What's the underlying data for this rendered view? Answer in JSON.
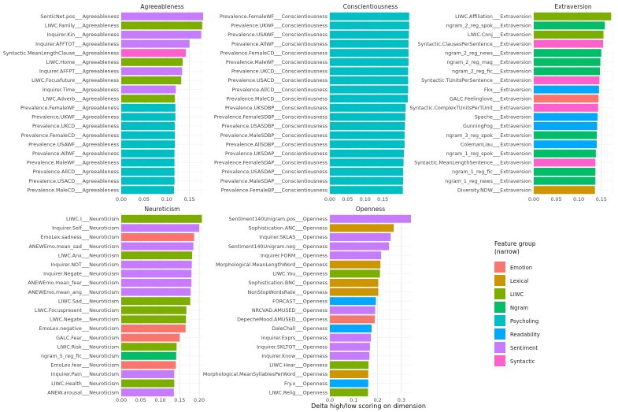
{
  "chart_data": {
    "type": "bar",
    "orientation": "horizontal",
    "xlabel": "Delta high/low scoring on dimension",
    "legend": {
      "title_line1": "Feature group",
      "title_line2": "(narrow)",
      "placement": "right",
      "items": [
        {
          "name": "Emotion",
          "color": "#F8766D"
        },
        {
          "name": "Lexical",
          "color": "#CD9600"
        },
        {
          "name": "LIWC",
          "color": "#7CAE00"
        },
        {
          "name": "Ngram",
          "color": "#00BE67"
        },
        {
          "name": "Psycholing",
          "color": "#00BFC4"
        },
        {
          "name": "Readability",
          "color": "#00A9FF"
        },
        {
          "name": "Sentiment",
          "color": "#C77CFF"
        },
        {
          "name": "Syntactic",
          "color": "#FF61CC"
        }
      ]
    },
    "panels": [
      {
        "title": "Agreeableness",
        "xticks": [
          0.0,
          0.05,
          0.1,
          0.15
        ],
        "xtick_labels": [
          "0.00",
          "0.05",
          "0.10",
          "0.15"
        ],
        "xlim": [
          0,
          0.18
        ],
        "bars": [
          {
            "label": "SenticNet.pos___Agreeableness",
            "value": 0.18,
            "group": "Sentiment"
          },
          {
            "label": "LIWC.Family___Agreeableness",
            "value": 0.178,
            "group": "LIWC"
          },
          {
            "label": "Inquirer.Kin___Agreeableness",
            "value": 0.176,
            "group": "Sentiment"
          },
          {
            "label": "Inquirer.AFFTOT___Agreeableness",
            "value": 0.15,
            "group": "Sentiment"
          },
          {
            "label": "Syntactic.MeanLengthClause___Agreeableness",
            "value": 0.142,
            "group": "Syntactic"
          },
          {
            "label": "LIWC.Home___Agreeableness",
            "value": 0.135,
            "group": "LIWC"
          },
          {
            "label": "Inquirer.AFFPT___Agreeableness",
            "value": 0.134,
            "group": "Sentiment"
          },
          {
            "label": "LIWC.Focusfuture___Agreeableness",
            "value": 0.132,
            "group": "LIWC"
          },
          {
            "label": "Inquirer.Time___Agreeableness",
            "value": 0.12,
            "group": "Sentiment"
          },
          {
            "label": "LIWC.Adverb___Agreeableness",
            "value": 0.118,
            "group": "LIWC"
          },
          {
            "label": "Prevalence.FemaleWF___Agreeableness",
            "value": 0.119,
            "group": "Psycholing"
          },
          {
            "label": "Prevalence.UKWF___Agreeableness",
            "value": 0.119,
            "group": "Psycholing"
          },
          {
            "label": "Prevalence.UKCD___Agreeableness",
            "value": 0.118,
            "group": "Psycholing"
          },
          {
            "label": "Prevalence.FemaleCD___Agreeableness",
            "value": 0.118,
            "group": "Psycholing"
          },
          {
            "label": "Prevalence.USAWF___Agreeableness",
            "value": 0.118,
            "group": "Psycholing"
          },
          {
            "label": "Prevalence.AllWF___Agreeableness",
            "value": 0.117,
            "group": "Psycholing"
          },
          {
            "label": "Prevalence.MaleWF___Agreeableness",
            "value": 0.117,
            "group": "Psycholing"
          },
          {
            "label": "Prevalence.AllCD___Agreeableness",
            "value": 0.117,
            "group": "Psycholing"
          },
          {
            "label": "Prevalence.USACD___Agreeableness",
            "value": 0.117,
            "group": "Psycholing"
          },
          {
            "label": "Prevalence.MaleCD___Agreeableness",
            "value": 0.116,
            "group": "Psycholing"
          }
        ]
      },
      {
        "title": "Conscientiousness",
        "xticks": [
          0.0,
          0.05,
          0.1,
          0.15
        ],
        "xtick_labels": [
          "0.00",
          "0.05",
          "0.10",
          "0.15"
        ],
        "xlim": [
          0,
          0.23
        ],
        "bars": [
          {
            "label": "Prevalence.FemaleWF___Conscientiousness",
            "value": 0.225,
            "group": "Psycholing"
          },
          {
            "label": "Prevalence.UKWF___Conscientiousness",
            "value": 0.225,
            "group": "Psycholing"
          },
          {
            "label": "Prevalence.USAWF___Conscientiousness",
            "value": 0.224,
            "group": "Psycholing"
          },
          {
            "label": "Prevalence.AllWF___Conscientiousness",
            "value": 0.223,
            "group": "Psycholing"
          },
          {
            "label": "Prevalence.FemaleCD___Conscientiousness",
            "value": 0.223,
            "group": "Psycholing"
          },
          {
            "label": "Prevalence.MaleWF___Conscientiousness",
            "value": 0.223,
            "group": "Psycholing"
          },
          {
            "label": "Prevalence.UKCD___Conscientiousness",
            "value": 0.222,
            "group": "Psycholing"
          },
          {
            "label": "Prevalence.USACD___Conscientiousness",
            "value": 0.222,
            "group": "Psycholing"
          },
          {
            "label": "Prevalence.AllCD___Conscientiousness",
            "value": 0.222,
            "group": "Psycholing"
          },
          {
            "label": "Prevalence.MaleCD___Conscientiousness",
            "value": 0.221,
            "group": "Psycholing"
          },
          {
            "label": "Prevalence.UKSDBP___Conscientiousness",
            "value": 0.215,
            "group": "Psycholing"
          },
          {
            "label": "Prevalence.FemaleSDBP___Conscientiousness",
            "value": 0.214,
            "group": "Psycholing"
          },
          {
            "label": "Prevalence.USASDBP___Conscientiousness",
            "value": 0.213,
            "group": "Psycholing"
          },
          {
            "label": "Prevalence.MaleSDBP___Conscientiousness",
            "value": 0.212,
            "group": "Psycholing"
          },
          {
            "label": "Prevalence.AllSDBP___Conscientiousness",
            "value": 0.212,
            "group": "Psycholing"
          },
          {
            "label": "Prevalence.UKSDAP___Conscientiousness",
            "value": 0.21,
            "group": "Psycholing"
          },
          {
            "label": "Prevalence.FemaleSDAP___Conscientiousness",
            "value": 0.209,
            "group": "Psycholing"
          },
          {
            "label": "Prevalence.USASDAP___Conscientiousness",
            "value": 0.208,
            "group": "Psycholing"
          },
          {
            "label": "Prevalence.MaleSDAP___Conscientiousness",
            "value": 0.208,
            "group": "Psycholing"
          },
          {
            "label": "Prevalence.FemaleBP___Conscientiousness",
            "value": 0.207,
            "group": "Psycholing"
          }
        ]
      },
      {
        "title": "Extraversion",
        "xticks": [
          0.0,
          0.05,
          0.1,
          0.15
        ],
        "xtick_labels": [
          "0.00",
          "0.05",
          "0.10",
          "0.15"
        ],
        "xlim": [
          0,
          0.175
        ],
        "bars": [
          {
            "label": "LIWC.Affiliation___Extraversion",
            "value": 0.172,
            "group": "LIWC"
          },
          {
            "label": "ngram_2_reg_spok___Extraversion",
            "value": 0.158,
            "group": "Ngram"
          },
          {
            "label": "LIWC.Conj___Extraversion",
            "value": 0.155,
            "group": "LIWC"
          },
          {
            "label": "Syntactic.ClausesPerSentence___Extraversion",
            "value": 0.154,
            "group": "Syntactic"
          },
          {
            "label": "ngram_2_reg_news___Extraversion",
            "value": 0.15,
            "group": "Ngram"
          },
          {
            "label": "ngram_2_reg_mag___Extraversion",
            "value": 0.148,
            "group": "Ngram"
          },
          {
            "label": "ngram_2_reg_fic___Extraversion",
            "value": 0.147,
            "group": "Ngram"
          },
          {
            "label": "Syntactic.TUnitsPerSentence___Extraversion",
            "value": 0.146,
            "group": "Syntactic"
          },
          {
            "label": "Fkx___Extraversion",
            "value": 0.145,
            "group": "Readability"
          },
          {
            "label": "GALC.Feelinglove___Extraversion",
            "value": 0.144,
            "group": "Emotion"
          },
          {
            "label": "Syntactic.ComplexTUnitsPerTUnit___Extraversion",
            "value": 0.143,
            "group": "Syntactic"
          },
          {
            "label": "Spache___Extraversion",
            "value": 0.142,
            "group": "Readability"
          },
          {
            "label": "GunningFog___Extraversion",
            "value": 0.141,
            "group": "Readability"
          },
          {
            "label": "ngram_3_reg_spok___Extraversion",
            "value": 0.14,
            "group": "Ngram"
          },
          {
            "label": "ColemanLiau___Extraversion",
            "value": 0.14,
            "group": "Readability"
          },
          {
            "label": "ngram_1_reg_spok___Extraversion",
            "value": 0.138,
            "group": "Ngram"
          },
          {
            "label": "Syntactic.MeanLengthSentence___Extraversion",
            "value": 0.137,
            "group": "Syntactic"
          },
          {
            "label": "ngram_1_reg_fic___Extraversion",
            "value": 0.137,
            "group": "Ngram"
          },
          {
            "label": "ngram_1_reg_news___Extraversion",
            "value": 0.137,
            "group": "Ngram"
          },
          {
            "label": "Diversity.NDW___Extraversion",
            "value": 0.136,
            "group": "Lexical"
          }
        ]
      },
      {
        "title": "Neuroticism",
        "xticks": [
          0.0,
          0.05,
          0.1,
          0.15,
          0.2
        ],
        "xtick_labels": [
          "0.00",
          "0.05",
          "0.10",
          "0.15",
          "0.20"
        ],
        "xlim": [
          0,
          0.21
        ],
        "bars": [
          {
            "label": "LIWC.I___Neuroticism",
            "value": 0.207,
            "group": "LIWC"
          },
          {
            "label": "Inquirer.Self___Neuroticism",
            "value": 0.2,
            "group": "Sentiment"
          },
          {
            "label": "EmoLex.sadness___Neuroticism",
            "value": 0.187,
            "group": "Emotion"
          },
          {
            "label": "ANEWEmo.mean_sad___Neuroticism",
            "value": 0.185,
            "group": "Sentiment"
          },
          {
            "label": "LIWC.Anx___Neuroticism",
            "value": 0.182,
            "group": "LIWC"
          },
          {
            "label": "Inquirer.NOT___Neuroticism",
            "value": 0.181,
            "group": "Sentiment"
          },
          {
            "label": "Inquirer.Negate___Neuroticism",
            "value": 0.18,
            "group": "Sentiment"
          },
          {
            "label": "ANEWEmo.mean_fear___Neuroticism",
            "value": 0.18,
            "group": "Sentiment"
          },
          {
            "label": "ANEWEmo.mean_ang___Neuroticism",
            "value": 0.178,
            "group": "Sentiment"
          },
          {
            "label": "LIWC.Sad___Neuroticism",
            "value": 0.177,
            "group": "LIWC"
          },
          {
            "label": "LIWC.Focuspresent___Neuroticism",
            "value": 0.167,
            "group": "LIWC"
          },
          {
            "label": "LIWC.Negate___Neuroticism",
            "value": 0.166,
            "group": "LIWC"
          },
          {
            "label": "EmoLex.negative___Neuroticism",
            "value": 0.165,
            "group": "Emotion"
          },
          {
            "label": "GALC.Fear___Neuroticism",
            "value": 0.15,
            "group": "Emotion"
          },
          {
            "label": "LIWC.Risk___Neuroticism",
            "value": 0.142,
            "group": "LIWC"
          },
          {
            "label": "ngram_5_reg_fic___Neuroticism",
            "value": 0.141,
            "group": "Ngram"
          },
          {
            "label": "EmoLex.fear___Neuroticism",
            "value": 0.14,
            "group": "Emotion"
          },
          {
            "label": "Inquirer.Pain___Neuroticism",
            "value": 0.136,
            "group": "Sentiment"
          },
          {
            "label": "LIWC.Health___Neuroticism",
            "value": 0.136,
            "group": "LIWC"
          },
          {
            "label": "ANEW.arousal___Neuroticism",
            "value": 0.135,
            "group": "Sentiment"
          }
        ]
      },
      {
        "title": "Openness",
        "xticks": [
          0.0,
          0.1,
          0.2,
          0.3
        ],
        "xtick_labels": [
          "0.0",
          "0.1",
          "0.2",
          "0.3"
        ],
        "xlim": [
          0,
          0.34
        ],
        "bars": [
          {
            "label": "Sentiment140Unigram.pos___Openness",
            "value": 0.34,
            "group": "Sentiment"
          },
          {
            "label": "Sophistication.ANC___Openness",
            "value": 0.268,
            "group": "Lexical"
          },
          {
            "label": "Inquirer.SKLAS___Openness",
            "value": 0.255,
            "group": "Sentiment"
          },
          {
            "label": "Sentiment140Unigram.neg___Openness",
            "value": 0.248,
            "group": "Sentiment"
          },
          {
            "label": "Inquirer.FORM___Openness",
            "value": 0.215,
            "group": "Sentiment"
          },
          {
            "label": "Morphological.MeanLengthWord___Openness",
            "value": 0.212,
            "group": "Lexical"
          },
          {
            "label": "LIWC.You___Openness",
            "value": 0.21,
            "group": "LIWC"
          },
          {
            "label": "Sophistication.BNC___Openness",
            "value": 0.203,
            "group": "Lexical"
          },
          {
            "label": "NonStopWordsRate___Openness",
            "value": 0.203,
            "group": "Lexical"
          },
          {
            "label": "FORCAST___Openness",
            "value": 0.193,
            "group": "Readability"
          },
          {
            "label": "NRCVAD.AMUSED___Openness",
            "value": 0.19,
            "group": "Sentiment"
          },
          {
            "label": "DepecheMood.AMUSED___Openness",
            "value": 0.188,
            "group": "Emotion"
          },
          {
            "label": "DaleChall___Openness",
            "value": 0.175,
            "group": "Readability"
          },
          {
            "label": "Inquirer.Exprs___Openness",
            "value": 0.172,
            "group": "Sentiment"
          },
          {
            "label": "Inquirer.SKLTOT___Openness",
            "value": 0.168,
            "group": "Sentiment"
          },
          {
            "label": "Inquirer.Know___Openness",
            "value": 0.166,
            "group": "Sentiment"
          },
          {
            "label": "LIWC.Hear___Openness",
            "value": 0.162,
            "group": "LIWC"
          },
          {
            "label": "Morphological.MeanSyllablesPerWord___Openness",
            "value": 0.161,
            "group": "Lexical"
          },
          {
            "label": "Fry.x___Openness",
            "value": 0.161,
            "group": "Readability"
          },
          {
            "label": "LIWC.Relig___Openness",
            "value": 0.16,
            "group": "LIWC"
          }
        ]
      }
    ]
  }
}
